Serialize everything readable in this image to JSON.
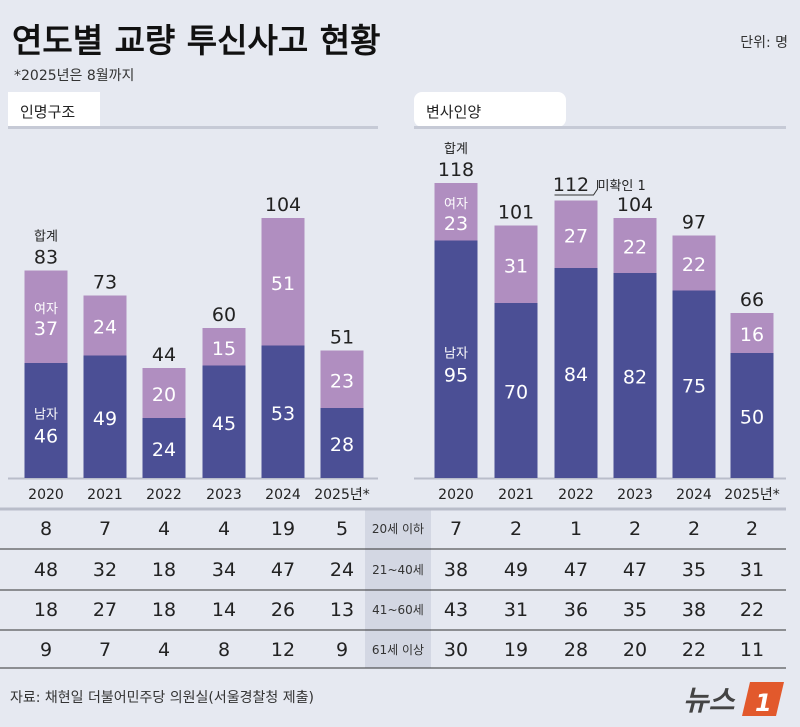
{
  "title": "연도별 교량 투신사고 현황",
  "note": "*2025년은 8월까지",
  "unit": "단위: 명",
  "source": "자료: 채현일 더불어민주당 의원실(서울경찰청 제출)",
  "logo": "뉴스1",
  "colors": {
    "male": "#4b4f95",
    "female": "#b08ec0",
    "background": "#e6e9f1",
    "label_column": "#d3d7e3"
  },
  "chart_data": [
    {
      "type": "bar",
      "title": "인명구조",
      "categories": [
        "2020",
        "2021",
        "2022",
        "2023",
        "2024",
        "2025년*"
      ],
      "series": [
        {
          "name": "남자",
          "values": [
            46,
            49,
            24,
            45,
            53,
            28
          ]
        },
        {
          "name": "여자",
          "values": [
            37,
            24,
            20,
            15,
            51,
            23
          ]
        }
      ],
      "totals": [
        83,
        73,
        44,
        60,
        104,
        51
      ],
      "total_label": "합계",
      "stacked": true
    },
    {
      "type": "bar",
      "title": "변사인양",
      "categories": [
        "2020",
        "2021",
        "2022",
        "2023",
        "2024",
        "2025년*"
      ],
      "series": [
        {
          "name": "남자",
          "values": [
            95,
            70,
            84,
            82,
            75,
            50
          ]
        },
        {
          "name": "여자",
          "values": [
            23,
            31,
            27,
            22,
            22,
            16
          ]
        }
      ],
      "totals": [
        118,
        101,
        112,
        104,
        97,
        66
      ],
      "total_label": "합계",
      "annotation": {
        "category": "2022",
        "text": "미확인 1"
      },
      "stacked": true
    }
  ],
  "age_table": {
    "rows": [
      "20세 이하",
      "21~40세",
      "41~60세",
      "61세 이상"
    ],
    "rescue": [
      [
        8,
        7,
        4,
        4,
        19,
        5
      ],
      [
        48,
        32,
        18,
        34,
        47,
        24
      ],
      [
        18,
        27,
        18,
        14,
        26,
        13
      ],
      [
        9,
        7,
        4,
        8,
        12,
        9
      ]
    ],
    "recovery": [
      [
        7,
        2,
        1,
        2,
        2,
        2
      ],
      [
        38,
        49,
        47,
        47,
        35,
        31
      ],
      [
        43,
        31,
        36,
        35,
        38,
        22
      ],
      [
        30,
        19,
        28,
        20,
        22,
        11
      ]
    ]
  }
}
